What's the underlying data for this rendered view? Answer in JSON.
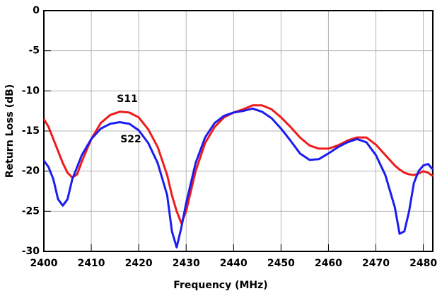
{
  "chart_data": {
    "type": "line",
    "x_label": "Frequency (MHz)",
    "y_label": "Return Loss (dB)",
    "x": [
      2400,
      2401,
      2402,
      2403,
      2404,
      2405,
      2406,
      2407,
      2408,
      2410,
      2412,
      2414,
      2416,
      2418,
      2420,
      2422,
      2424,
      2426,
      2427,
      2428,
      2429,
      2430,
      2432,
      2434,
      2436,
      2438,
      2440,
      2442,
      2444,
      2446,
      2448,
      2450,
      2452,
      2454,
      2456,
      2458,
      2460,
      2462,
      2464,
      2466,
      2468,
      2470,
      2472,
      2474,
      2475,
      2476,
      2477,
      2478,
      2479,
      2480,
      2481,
      2482
    ],
    "series": [
      {
        "name": "S11",
        "color": "#ee1c1c",
        "values": [
          -13.5,
          -14.5,
          -16,
          -17.5,
          -19,
          -20.2,
          -20.8,
          -20.4,
          -18.8,
          -16,
          -14,
          -13,
          -12.6,
          -12.7,
          -13.3,
          -14.8,
          -17,
          -20.5,
          -23,
          -25,
          -26.5,
          -25,
          -20,
          -16.5,
          -14.5,
          -13.3,
          -12.7,
          -12.3,
          -11.8,
          -11.8,
          -12.3,
          -13.3,
          -14.5,
          -15.8,
          -16.8,
          -17.2,
          -17.2,
          -16.8,
          -16.2,
          -15.8,
          -15.8,
          -16.7,
          -18,
          -19.3,
          -19.8,
          -20.2,
          -20.4,
          -20.5,
          -20.3,
          -20,
          -20.2,
          -20.6
        ]
      },
      {
        "name": "S22",
        "color": "#1c1cee",
        "values": [
          -18.7,
          -19.5,
          -21,
          -23.5,
          -24.3,
          -23.5,
          -21,
          -19.5,
          -18,
          -16,
          -14.7,
          -14.1,
          -13.9,
          -14.1,
          -14.9,
          -16.5,
          -19,
          -23,
          -27.5,
          -29.5,
          -27,
          -24,
          -19,
          -15.8,
          -14,
          -13.1,
          -12.7,
          -12.5,
          -12.2,
          -12.6,
          -13.4,
          -14.7,
          -16.2,
          -17.8,
          -18.6,
          -18.5,
          -17.8,
          -17,
          -16.4,
          -16,
          -16.4,
          -18,
          -20.5,
          -24.5,
          -27.8,
          -27.5,
          -25,
          -21.5,
          -20,
          -19.3,
          -19.1,
          -19.8
        ]
      }
    ],
    "xlim": [
      2400,
      2482
    ],
    "ylim": [
      -30,
      0
    ],
    "xticks": [
      2400,
      2410,
      2420,
      2430,
      2440,
      2450,
      2460,
      2470,
      2480
    ],
    "yticks": [
      0,
      -5,
      -10,
      -15,
      -20,
      -25,
      -30
    ],
    "grid": true
  }
}
